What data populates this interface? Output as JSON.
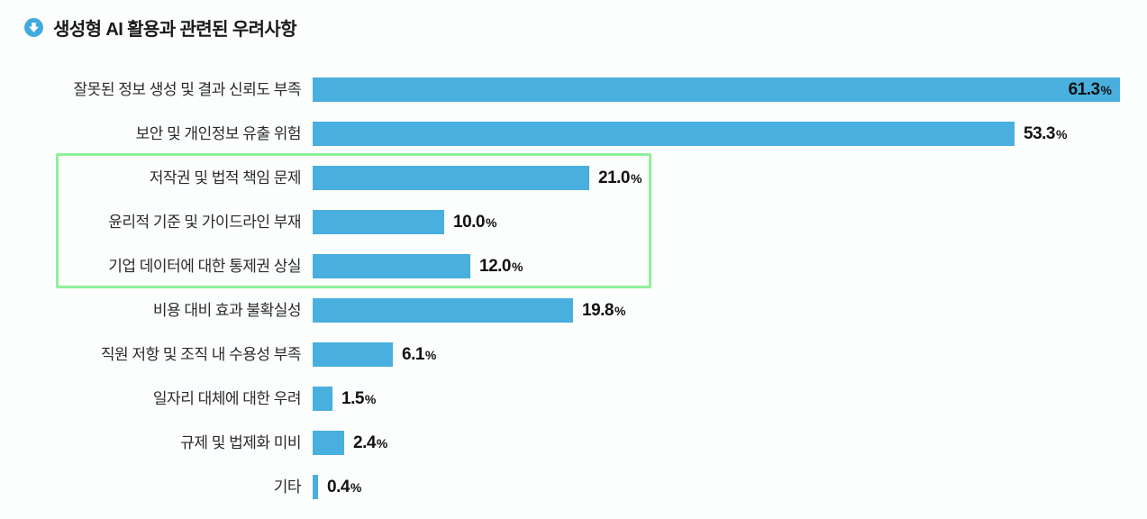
{
  "page": {
    "background_color": "#FBFEFC"
  },
  "header": {
    "title": "생성형 AI 활용과 관련된 우려사항",
    "icon": "circle-down-arrow-icon",
    "icon_color": "#41ABDD",
    "title_color": "#1A1A1A"
  },
  "chart_data": {
    "type": "bar",
    "orientation": "horizontal",
    "title": "생성형 AI 활용과 관련된 우려사항",
    "value_unit": "%",
    "categories": [
      "잘못된 정보 생성 및 결과 신뢰도 부족",
      "보안 및 개인정보 유출 위험",
      "저작권 및 법적 책임 문제",
      "윤리적 기준 및 가이드라인 부재",
      "기업 데이터에 대한 통제권 상실",
      "비용 대비 효과 불확실성",
      "직원 저항 및 조직 내 수용성 부족",
      "일자리 대체에 대한 우려",
      "규제 및 법제화 미비",
      "기타"
    ],
    "values": [
      61.3,
      53.3,
      21.0,
      10.0,
      12.0,
      19.8,
      6.1,
      1.5,
      2.4,
      0.4
    ],
    "value_label_texts": [
      "61.3",
      "53.3",
      "21.0",
      "10.0",
      "12.0",
      "19.8",
      "6.1",
      "1.5",
      "2.4",
      "0.4"
    ],
    "xlim": [
      0,
      63
    ],
    "grid": false,
    "legend": false,
    "bar_color": "#49AFDE",
    "category_label_color": "#2B2B2B",
    "value_label_color": "#121212",
    "first_value_label_inside_bar": true,
    "highlighted_indices": [
      2,
      3,
      4
    ],
    "highlight_box_color": "#8FF09B"
  }
}
